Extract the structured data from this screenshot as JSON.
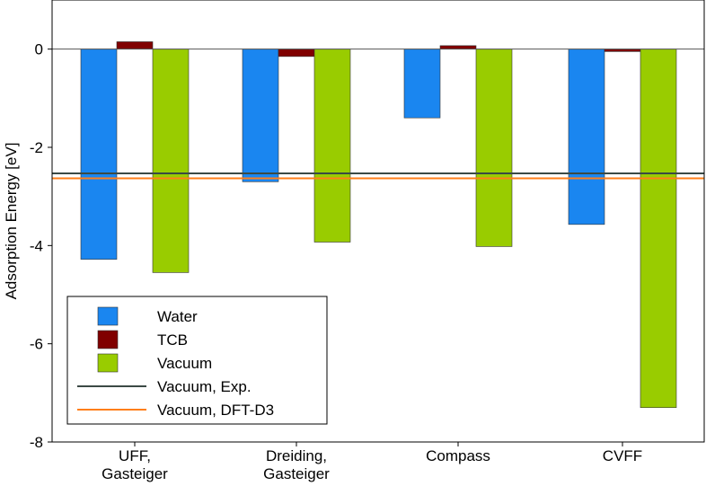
{
  "chart_data": {
    "type": "bar",
    "title": "",
    "xlabel": "",
    "ylabel": "Adsorption Energy [eV]",
    "ylim": [
      -8,
      1
    ],
    "yticks": [
      0,
      -2,
      -4,
      -6,
      -8
    ],
    "ytick_labels": [
      "0",
      "-2",
      "-4",
      "-6",
      "-8"
    ],
    "categories": [
      {
        "line1": "UFF,",
        "line2": "Gasteiger"
      },
      {
        "line1": "Dreiding,",
        "line2": "Gasteiger"
      },
      {
        "line1": "Compass",
        "line2": ""
      },
      {
        "line1": "CVFF",
        "line2": ""
      }
    ],
    "series": [
      {
        "name": "Water",
        "color": "#1a86f0",
        "values": [
          -4.28,
          -2.7,
          -1.4,
          -3.57
        ]
      },
      {
        "name": "TCB",
        "color": "#800000",
        "values": [
          0.15,
          -0.15,
          0.07,
          -0.05
        ]
      },
      {
        "name": "Vacuum",
        "color": "#99cc00",
        "values": [
          -4.55,
          -3.93,
          -4.02,
          -7.3
        ]
      }
    ],
    "reference_lines": [
      {
        "name": "Vacuum, Exp.",
        "color": "#3b4a45",
        "value": -2.53
      },
      {
        "name": "Vacuum, DFT-D3",
        "color": "#ff7f1a",
        "value": -2.63
      }
    ],
    "legend": {
      "position": "bottom-left",
      "entries": [
        "Water",
        "TCB",
        "Vacuum",
        "Vacuum, Exp.",
        "Vacuum, DFT-D3"
      ]
    },
    "zero_line": true,
    "grid": false
  }
}
